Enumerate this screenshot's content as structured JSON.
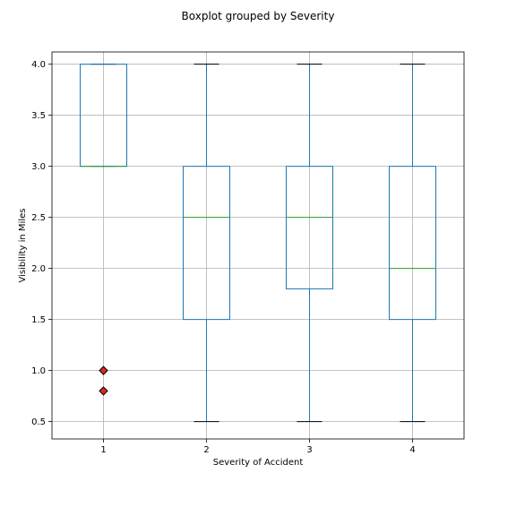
{
  "chart_data": {
    "type": "box",
    "title": "Boxplot grouped by Severity",
    "xlabel": "Severity of Accident",
    "ylabel": "Visibility in Miles",
    "ylim": [
      0.33,
      4.12
    ],
    "yticks": [
      "0.5",
      "1.0",
      "1.5",
      "2.0",
      "2.5",
      "3.0",
      "3.5",
      "4.0"
    ],
    "grid": true,
    "colors": {
      "box": "#1f77b4",
      "median": "#2ca02c",
      "whisker": "#1f77b4",
      "cap": "#000000",
      "flier_fill": "#d62728",
      "flier_edge": "#000000",
      "grid": "#b0b0b0"
    },
    "categories": [
      "1",
      "2",
      "3",
      "4"
    ],
    "boxes": [
      {
        "category": "1",
        "whislo": 3.0,
        "q1": 3.0,
        "med": 3.0,
        "q3": 4.0,
        "whishi": 4.0,
        "fliers": [
          1.0,
          0.8
        ]
      },
      {
        "category": "2",
        "whislo": 0.5,
        "q1": 1.5,
        "med": 2.5,
        "q3": 3.0,
        "whishi": 4.0,
        "fliers": []
      },
      {
        "category": "3",
        "whislo": 0.5,
        "q1": 1.8,
        "med": 2.5,
        "q3": 3.0,
        "whishi": 4.0,
        "fliers": []
      },
      {
        "category": "4",
        "whislo": 0.5,
        "q1": 1.5,
        "med": 2.0,
        "q3": 3.0,
        "whishi": 4.0,
        "fliers": []
      }
    ]
  }
}
